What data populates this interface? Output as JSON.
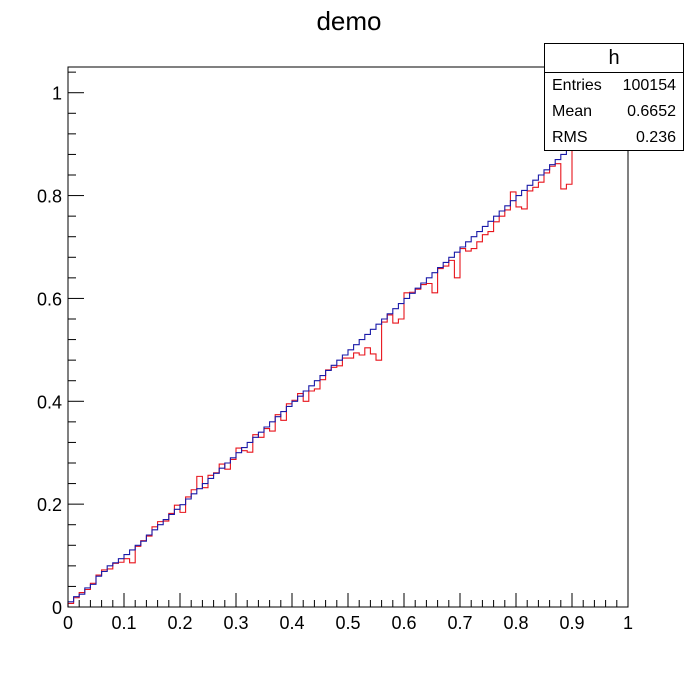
{
  "chart_data": {
    "type": "histogram",
    "title": "demo",
    "xlim": [
      0,
      1
    ],
    "ylim": [
      0,
      1.05
    ],
    "x_ticks": [
      "0",
      "0.1",
      "0.2",
      "0.3",
      "0.4",
      "0.5",
      "0.6",
      "0.7",
      "0.8",
      "0.9",
      "1"
    ],
    "y_ticks": [
      "0",
      "0.2",
      "0.4",
      "0.6",
      "0.8",
      "1"
    ],
    "bins": 100,
    "grid": false,
    "series": [
      {
        "color": "#e8141c",
        "values": [
          0.007,
          0.018,
          0.028,
          0.034,
          0.046,
          0.062,
          0.072,
          0.074,
          0.085,
          0.087,
          0.094,
          0.086,
          0.118,
          0.129,
          0.138,
          0.156,
          0.166,
          0.167,
          0.182,
          0.198,
          0.184,
          0.214,
          0.228,
          0.254,
          0.232,
          0.256,
          0.261,
          0.278,
          0.268,
          0.287,
          0.309,
          0.304,
          0.301,
          0.335,
          0.33,
          0.347,
          0.342,
          0.374,
          0.363,
          0.395,
          0.402,
          0.415,
          0.4,
          0.42,
          0.424,
          0.442,
          0.461,
          0.466,
          0.469,
          0.484,
          0.484,
          0.494,
          0.49,
          0.504,
          0.492,
          0.48,
          0.554,
          0.568,
          0.552,
          0.56,
          0.611,
          0.612,
          0.618,
          0.627,
          0.629,
          0.611,
          0.658,
          0.663,
          0.674,
          0.64,
          0.697,
          0.692,
          0.697,
          0.71,
          0.724,
          0.73,
          0.749,
          0.76,
          0.772,
          0.807,
          0.778,
          0.774,
          0.809,
          0.816,
          0.826,
          0.844,
          0.857,
          0.862,
          0.813,
          0.822,
          0.902,
          0.91,
          0.925,
          0.942,
          0.928,
          0.912,
          0.958,
          0.972,
          0.992,
          0.988
        ]
      },
      {
        "color": "#1a1aa8",
        "values": [
          0.01,
          0.02,
          0.025,
          0.037,
          0.044,
          0.06,
          0.069,
          0.08,
          0.086,
          0.094,
          0.102,
          0.111,
          0.12,
          0.128,
          0.14,
          0.15,
          0.16,
          0.17,
          0.18,
          0.19,
          0.199,
          0.21,
          0.22,
          0.23,
          0.24,
          0.25,
          0.26,
          0.27,
          0.28,
          0.29,
          0.3,
          0.31,
          0.32,
          0.33,
          0.34,
          0.35,
          0.36,
          0.37,
          0.38,
          0.39,
          0.4,
          0.41,
          0.42,
          0.43,
          0.44,
          0.45,
          0.46,
          0.47,
          0.48,
          0.49,
          0.5,
          0.51,
          0.52,
          0.53,
          0.54,
          0.55,
          0.56,
          0.57,
          0.58,
          0.59,
          0.6,
          0.61,
          0.62,
          0.63,
          0.64,
          0.65,
          0.66,
          0.67,
          0.68,
          0.69,
          0.7,
          0.71,
          0.72,
          0.73,
          0.74,
          0.75,
          0.76,
          0.77,
          0.78,
          0.79,
          0.8,
          0.81,
          0.82,
          0.83,
          0.84,
          0.85,
          0.86,
          0.87,
          0.88,
          0.89,
          0.9,
          0.91,
          0.92,
          0.93,
          0.94,
          0.95,
          0.96,
          0.97,
          0.98,
          0.99
        ]
      }
    ],
    "stats": {
      "name": "h",
      "rows": [
        {
          "label": "Entries",
          "value": "100154"
        },
        {
          "label": "Mean",
          "value": "0.6652"
        },
        {
          "label": "RMS",
          "value": "0.236"
        }
      ]
    }
  }
}
